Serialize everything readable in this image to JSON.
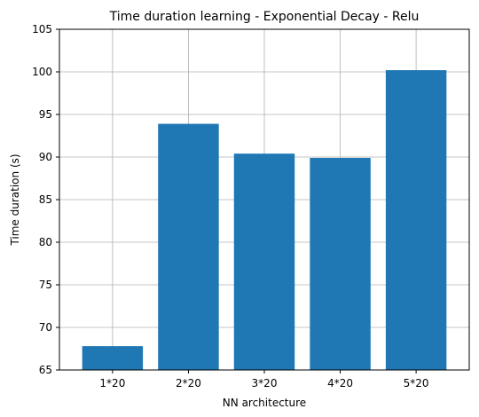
{
  "chart_data": {
    "type": "bar",
    "title": "Time duration learning - Exponential Decay - Relu",
    "xlabel": "NN architecture",
    "ylabel": "Time duration (s)",
    "categories": [
      "1*20",
      "2*20",
      "3*20",
      "4*20",
      "5*20"
    ],
    "values": [
      67.8,
      93.9,
      90.4,
      89.9,
      100.2
    ],
    "ylim": [
      65,
      105
    ],
    "yticks": [
      65,
      70,
      75,
      80,
      85,
      90,
      95,
      100,
      105
    ],
    "grid": true,
    "bar_color": "#1f77b4"
  }
}
